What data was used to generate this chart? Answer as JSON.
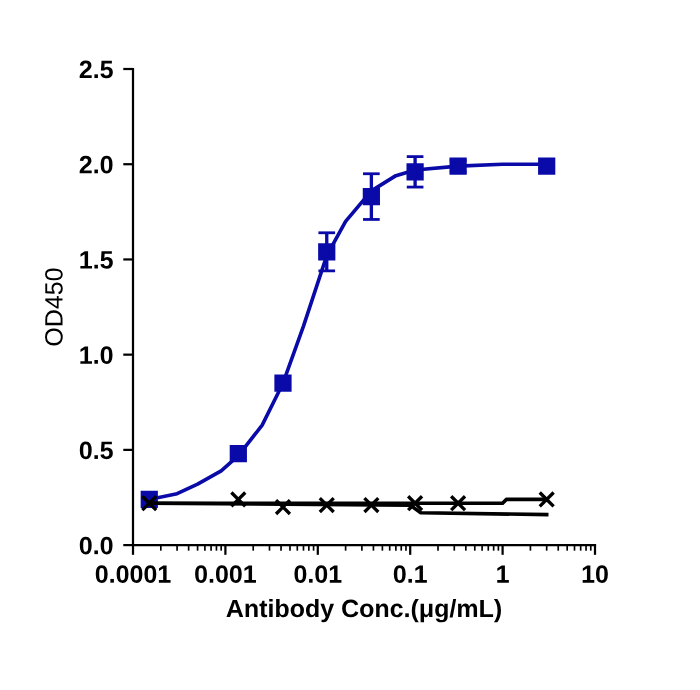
{
  "chart_data": {
    "type": "scatter",
    "xlabel": "Antibody Conc.(μg/mL)",
    "ylabel": "OD450",
    "log": "x",
    "xlim": [
      0.0001,
      10
    ],
    "xticks": [
      0.0001,
      0.001,
      0.01,
      0.1,
      1,
      10
    ],
    "ylim": [
      0,
      2.5
    ],
    "yticks": [
      {
        "value": 0,
        "label": "0.0"
      },
      0.5,
      {
        "value": 1,
        "label": "1.0"
      },
      1.5,
      {
        "value": 2,
        "label": "2.0"
      },
      2.5
    ],
    "grid": false,
    "series": [
      {
        "type": "line",
        "color": "#0a0aa8",
        "marker": "none",
        "x": [
          0.00015,
          0.0003,
          0.0005,
          0.0009,
          0.00138,
          0.0025,
          0.0042,
          0.007,
          0.0125,
          0.02,
          0.038,
          0.07,
          0.113,
          0.33,
          1,
          3
        ],
        "values": [
          0.24,
          0.27,
          0.32,
          0.39,
          0.47,
          0.63,
          0.85,
          1.15,
          1.52,
          1.7,
          1.86,
          1.94,
          1.97,
          1.99,
          2.0,
          2.0
        ]
      },
      {
        "color": "#0a0aa8",
        "marker": "square",
        "x": [
          0.00015,
          0.00138,
          0.0042,
          0.0125,
          0.038,
          0.113,
          0.33,
          3
        ],
        "values": [
          0.24,
          0.48,
          0.85,
          1.54,
          1.83,
          1.96,
          1.99,
          1.99
        ],
        "errors": [
          null,
          null,
          null,
          0.1,
          0.12,
          0.08,
          0.03,
          null
        ]
      },
      {
        "type": "line",
        "color": "#000000",
        "marker": "none",
        "x": [
          0.00015,
          0.11,
          1,
          1.1,
          3
        ],
        "values": [
          0.22,
          0.22,
          0.22,
          0.24,
          0.24
        ]
      },
      {
        "type": "line",
        "color": "#000000",
        "marker": "none",
        "x": [
          0.00015,
          0.1,
          0.13,
          3
        ],
        "values": [
          0.22,
          0.21,
          0.17,
          0.16
        ]
      },
      {
        "color": "#000000",
        "marker": "cross",
        "x": [
          0.00015,
          0.00138,
          0.0042,
          0.0125,
          0.038,
          0.113,
          0.33,
          3
        ],
        "values": [
          0.22,
          0.24,
          0.2,
          0.21,
          0.21,
          0.22,
          0.22,
          0.24
        ]
      }
    ]
  }
}
